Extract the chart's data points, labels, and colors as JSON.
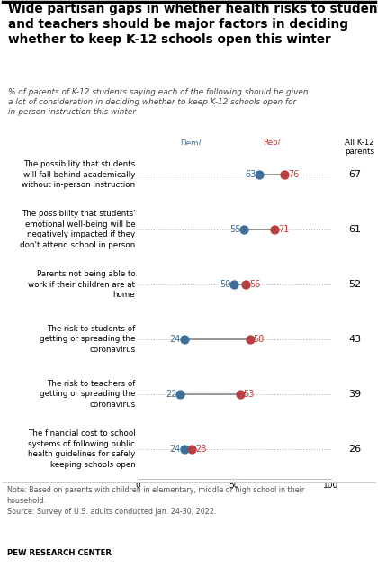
{
  "title": "Wide partisan gaps in whether health risks to students\nand teachers should be major factors in deciding\nwhether to keep K-12 schools open this winter",
  "subtitle": "% of parents of K-12 students saying each of the following should be given\na lot of consideration in deciding whether to keep K-12 schools open for\nin-person instruction this winter",
  "categories_plain": [
    "The possibility that students\nwill fall behind academically\nwithout in-person instruction",
    "The possibility that students'\nemotional well-being will be\nnegatively impacted if they\ndon't attend school in person",
    "Parents not being able to\nwork if their children are at\nhome",
    "The risk to students of\ngetting or spreading the\ncoronavirus",
    "The risk to teachers of\ngetting or spreading the\ncoronavirus",
    "The financial cost to school\nsystems of following public\nhealth guidelines for safely\nkeeping schools open"
  ],
  "bold_word": [
    null,
    null,
    null,
    "students",
    "teachers",
    null
  ],
  "dem_values": [
    63,
    55,
    50,
    24,
    22,
    24
  ],
  "rep_values": [
    76,
    71,
    56,
    58,
    53,
    28
  ],
  "all_values": [
    67,
    61,
    52,
    43,
    39,
    26
  ],
  "dem_color": "#3d6f99",
  "rep_color": "#b94040",
  "connector_color": "#888888",
  "dotline_color": "#aaaaaa",
  "all_bg_color": "#ebe5dd",
  "note_text": "Note: Based on parents with children in elementary, middle or high school in their\nhousehold.\nSource: Survey of U.S. adults conducted Jan. 24-30, 2022.",
  "source_bold": "PEW RESEARCH CENTER",
  "xlim": [
    0,
    100
  ],
  "xticks": [
    0,
    50,
    100
  ],
  "xtick_labels": [
    "0",
    "50",
    "100"
  ]
}
